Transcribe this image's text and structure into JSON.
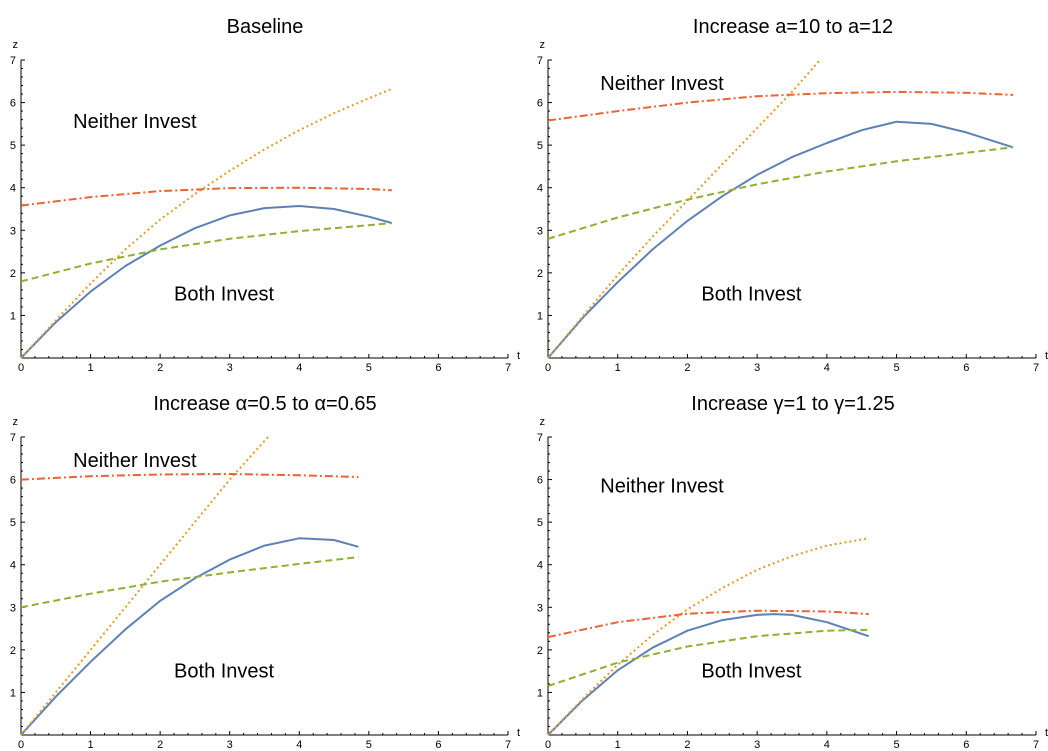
{
  "chart_data": [
    {
      "type": "line",
      "title": "Baseline",
      "xlabel": "t",
      "ylabel": "z",
      "xlim": [
        0,
        7
      ],
      "ylim": [
        0,
        7
      ],
      "xticks": [
        "0",
        "1",
        "2",
        "3",
        "4",
        "5",
        "6",
        "7"
      ],
      "yticks": [
        "1",
        "2",
        "3",
        "4",
        "5",
        "6",
        "7"
      ],
      "region_labels": [
        {
          "text": "Neither Invest",
          "t": 0.75,
          "z": 5.4
        },
        {
          "text": "Both Invest",
          "t": 2.2,
          "z": 1.35
        }
      ],
      "series": [
        {
          "style": "solid",
          "color": "#5E81B5",
          "x": [
            0,
            0.5,
            1,
            1.5,
            2,
            2.5,
            3,
            3.5,
            4,
            4.5,
            5,
            5.33
          ],
          "y": [
            0,
            0.84,
            1.56,
            2.16,
            2.64,
            3.05,
            3.35,
            3.52,
            3.57,
            3.5,
            3.32,
            3.17
          ]
        },
        {
          "style": "dotted",
          "color": "#E19C24",
          "x": [
            0,
            0.5,
            1,
            1.5,
            2,
            2.5,
            3,
            3.5,
            4,
            4.5,
            5,
            5.33
          ],
          "y": [
            0,
            0.88,
            1.75,
            2.55,
            3.25,
            3.85,
            4.4,
            4.9,
            5.35,
            5.75,
            6.1,
            6.32
          ]
        },
        {
          "style": "dashdot",
          "color": "#EC6235",
          "x": [
            0,
            1,
            2,
            3,
            4,
            5,
            5.33
          ],
          "y": [
            3.58,
            3.78,
            3.92,
            3.99,
            4.0,
            3.97,
            3.94
          ]
        },
        {
          "style": "dashed",
          "color": "#8FB032",
          "x": [
            0,
            1,
            2,
            3,
            4,
            5,
            5.33
          ],
          "y": [
            1.8,
            2.22,
            2.55,
            2.8,
            2.98,
            3.12,
            3.17
          ]
        }
      ]
    },
    {
      "type": "line",
      "title": "Increase a=10 to a=12",
      "xlabel": "t",
      "ylabel": "z",
      "xlim": [
        0,
        7
      ],
      "ylim": [
        0,
        7
      ],
      "xticks": [
        "0",
        "1",
        "2",
        "3",
        "4",
        "5",
        "6",
        "7"
      ],
      "yticks": [
        "1",
        "2",
        "3",
        "4",
        "5",
        "6",
        "7"
      ],
      "region_labels": [
        {
          "text": "Neither Invest",
          "t": 0.75,
          "z": 6.3
        },
        {
          "text": "Both Invest",
          "t": 2.2,
          "z": 1.35
        }
      ],
      "series": [
        {
          "style": "solid",
          "color": "#5E81B5",
          "x": [
            0,
            0.5,
            1,
            1.5,
            2,
            2.5,
            3,
            3.5,
            4,
            4.5,
            5,
            5.5,
            6,
            6.67
          ],
          "y": [
            0,
            0.95,
            1.78,
            2.55,
            3.22,
            3.8,
            4.3,
            4.72,
            5.05,
            5.35,
            5.55,
            5.5,
            5.3,
            4.95
          ]
        },
        {
          "style": "dotted",
          "color": "#E19C24",
          "x": [
            0,
            0.5,
            1,
            1.5,
            2,
            2.5,
            3,
            3.5,
            3.9
          ],
          "y": [
            0,
            0.98,
            1.95,
            2.85,
            3.7,
            4.55,
            5.4,
            6.25,
            7.0
          ]
        },
        {
          "style": "dashdot",
          "color": "#EC6235",
          "x": [
            0,
            1,
            2,
            3,
            4,
            5,
            6,
            6.67
          ],
          "y": [
            5.58,
            5.8,
            6.0,
            6.15,
            6.22,
            6.25,
            6.23,
            6.18
          ]
        },
        {
          "style": "dashed",
          "color": "#8FB032",
          "x": [
            0,
            1,
            2,
            3,
            4,
            5,
            6,
            6.67
          ],
          "y": [
            2.8,
            3.3,
            3.72,
            4.08,
            4.38,
            4.62,
            4.82,
            4.95
          ]
        }
      ]
    },
    {
      "type": "line",
      "title": "Increase α=0.5 to α=0.65",
      "xlabel": "t",
      "ylabel": "z",
      "xlim": [
        0,
        7
      ],
      "ylim": [
        0,
        7
      ],
      "xticks": [
        "0",
        "1",
        "2",
        "3",
        "4",
        "5",
        "6",
        "7"
      ],
      "yticks": [
        "1",
        "2",
        "3",
        "4",
        "5",
        "6",
        "7"
      ],
      "region_labels": [
        {
          "text": "Neither Invest",
          "t": 0.75,
          "z": 6.3
        },
        {
          "text": "Both Invest",
          "t": 2.2,
          "z": 1.35
        }
      ],
      "series": [
        {
          "style": "solid",
          "color": "#5E81B5",
          "x": [
            0,
            0.5,
            1,
            1.5,
            2,
            2.5,
            3,
            3.5,
            4,
            4.5,
            4.85
          ],
          "y": [
            0,
            0.9,
            1.72,
            2.48,
            3.15,
            3.68,
            4.12,
            4.45,
            4.62,
            4.58,
            4.42
          ]
        },
        {
          "style": "dotted",
          "color": "#E19C24",
          "x": [
            0,
            0.5,
            1,
            1.5,
            2,
            2.5,
            3,
            3.55
          ],
          "y": [
            0,
            1.0,
            2.0,
            3.0,
            4.0,
            5.0,
            6.0,
            7.0
          ]
        },
        {
          "style": "dashdot",
          "color": "#EC6235",
          "x": [
            0,
            1,
            2,
            3,
            4,
            4.85
          ],
          "y": [
            6.0,
            6.08,
            6.12,
            6.13,
            6.1,
            6.06
          ]
        },
        {
          "style": "dashed",
          "color": "#8FB032",
          "x": [
            0,
            1,
            2,
            3,
            4,
            4.85
          ],
          "y": [
            3.0,
            3.32,
            3.6,
            3.82,
            4.02,
            4.18
          ]
        }
      ]
    },
    {
      "type": "line",
      "title": "Increase γ=1 to γ=1.25",
      "xlabel": "t",
      "ylabel": "z",
      "xlim": [
        0,
        7
      ],
      "ylim": [
        0,
        7
      ],
      "xticks": [
        "0",
        "1",
        "2",
        "3",
        "4",
        "5",
        "6",
        "7"
      ],
      "yticks": [
        "1",
        "2",
        "3",
        "4",
        "5",
        "6",
        "7"
      ],
      "region_labels": [
        {
          "text": "Neither Invest",
          "t": 0.75,
          "z": 5.7
        },
        {
          "text": "Both Invest",
          "t": 2.2,
          "z": 1.35
        }
      ],
      "series": [
        {
          "style": "solid",
          "color": "#5E81B5",
          "x": [
            0,
            0.5,
            1,
            1.5,
            2,
            2.5,
            3,
            3.25,
            3.5,
            4,
            4.6
          ],
          "y": [
            0,
            0.82,
            1.52,
            2.05,
            2.45,
            2.7,
            2.82,
            2.84,
            2.82,
            2.65,
            2.32
          ]
        },
        {
          "style": "dotted",
          "color": "#E19C24",
          "x": [
            0,
            0.5,
            1,
            1.5,
            2,
            2.5,
            3,
            3.5,
            4,
            4.6
          ],
          "y": [
            0,
            0.85,
            1.65,
            2.35,
            2.95,
            3.45,
            3.88,
            4.2,
            4.45,
            4.62
          ]
        },
        {
          "style": "dashdot",
          "color": "#EC6235",
          "x": [
            0,
            1,
            2,
            3,
            4,
            4.6
          ],
          "y": [
            2.3,
            2.65,
            2.85,
            2.92,
            2.9,
            2.84
          ]
        },
        {
          "style": "dashed",
          "color": "#8FB032",
          "x": [
            0,
            1,
            2,
            3,
            4,
            4.6
          ],
          "y": [
            1.15,
            1.7,
            2.08,
            2.32,
            2.45,
            2.47
          ]
        }
      ]
    }
  ]
}
